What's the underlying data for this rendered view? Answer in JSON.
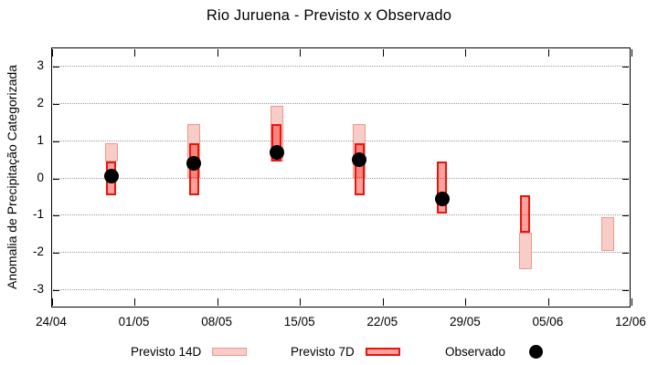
{
  "title": "Rio Juruena - Previsto x Observado",
  "chart_data": {
    "type": "candlestick-range-bar",
    "title": "Rio Juruena - Previsto x Observado",
    "xlabel": "",
    "ylabel": "Anomalia de Precipitação Categorizada",
    "ylim": [
      -3.5,
      3.5
    ],
    "yticks": [
      3,
      2,
      1,
      0,
      -1,
      -2,
      -3
    ],
    "xtick_labels": [
      "24/04",
      "01/05",
      "08/05",
      "15/05",
      "22/05",
      "29/05",
      "05/06",
      "12/06"
    ],
    "xtick_days": [
      0,
      7,
      14,
      21,
      28,
      35,
      42,
      49
    ],
    "x_range_days": 49,
    "grid": "dotted horizontal",
    "series_notes": "previsto ranges are [low, high] category anomaly; observado is a point value; null = not shown",
    "points": [
      {
        "date": "29/04",
        "day": 5,
        "previsto_14d": [
          0.45,
          0.95
        ],
        "previsto_7d": [
          -0.45,
          0.45
        ],
        "observado": 0.05
      },
      {
        "date": "06/05",
        "day": 12,
        "previsto_14d": [
          0.0,
          1.45
        ],
        "previsto_7d": [
          -0.45,
          0.95
        ],
        "observado": 0.4
      },
      {
        "date": "13/05",
        "day": 19,
        "previsto_14d": [
          0.45,
          1.95
        ],
        "previsto_7d": [
          0.45,
          1.45
        ],
        "observado": 0.7
      },
      {
        "date": "20/05",
        "day": 26,
        "previsto_14d": [
          0.0,
          1.45
        ],
        "previsto_7d": [
          -0.45,
          0.95
        ],
        "observado": 0.5
      },
      {
        "date": "27/05",
        "day": 33,
        "previsto_14d": null,
        "previsto_7d": [
          -0.95,
          0.45
        ],
        "observado": -0.55
      },
      {
        "date": "03/06",
        "day": 40,
        "previsto_14d": [
          -2.45,
          -1.45
        ],
        "previsto_7d": [
          -1.45,
          -0.45
        ],
        "observado": null
      },
      {
        "date": "10/06",
        "day": 47,
        "previsto_14d": [
          -1.95,
          -1.05
        ],
        "previsto_7d": null,
        "observado": null
      }
    ],
    "legend": [
      {
        "label": "Previsto 14D",
        "marker": "pink-box"
      },
      {
        "label": "Previsto 7D",
        "marker": "red-box"
      },
      {
        "label": "Observado",
        "marker": "black-dot"
      }
    ],
    "legend_position": "bottom",
    "colors": {
      "previsto_14d_fill": "#f9cdc7",
      "previsto_14d_border": "#f0968c",
      "previsto_7d_fill": "rgba(250,30,20,0.42)",
      "previsto_7d_border": "#e8150d",
      "observado": "#000000",
      "grid": "#9a9a9a",
      "frame": "#000000"
    }
  }
}
